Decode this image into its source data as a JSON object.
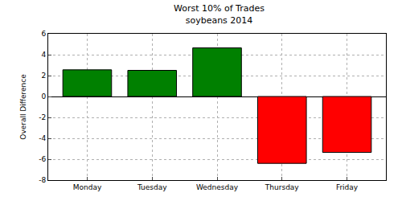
{
  "chart_data": {
    "type": "bar",
    "title": "Worst 10% of Trades",
    "subtitle": "soybeans 2014",
    "y_label": "Overall Difference",
    "categories": [
      "Monday",
      "Tuesday",
      "Wednesday",
      "Thursday",
      "Friday"
    ],
    "values": [
      2.55,
      2.5,
      4.65,
      -6.4,
      -5.35
    ],
    "colors": [
      "#008000",
      "#008000",
      "#008000",
      "#ff0000",
      "#ff0000"
    ],
    "ylim": [
      -8,
      6
    ],
    "yticks": [
      -8,
      -6,
      -4,
      -2,
      0,
      2,
      4,
      6
    ],
    "grid": true
  }
}
